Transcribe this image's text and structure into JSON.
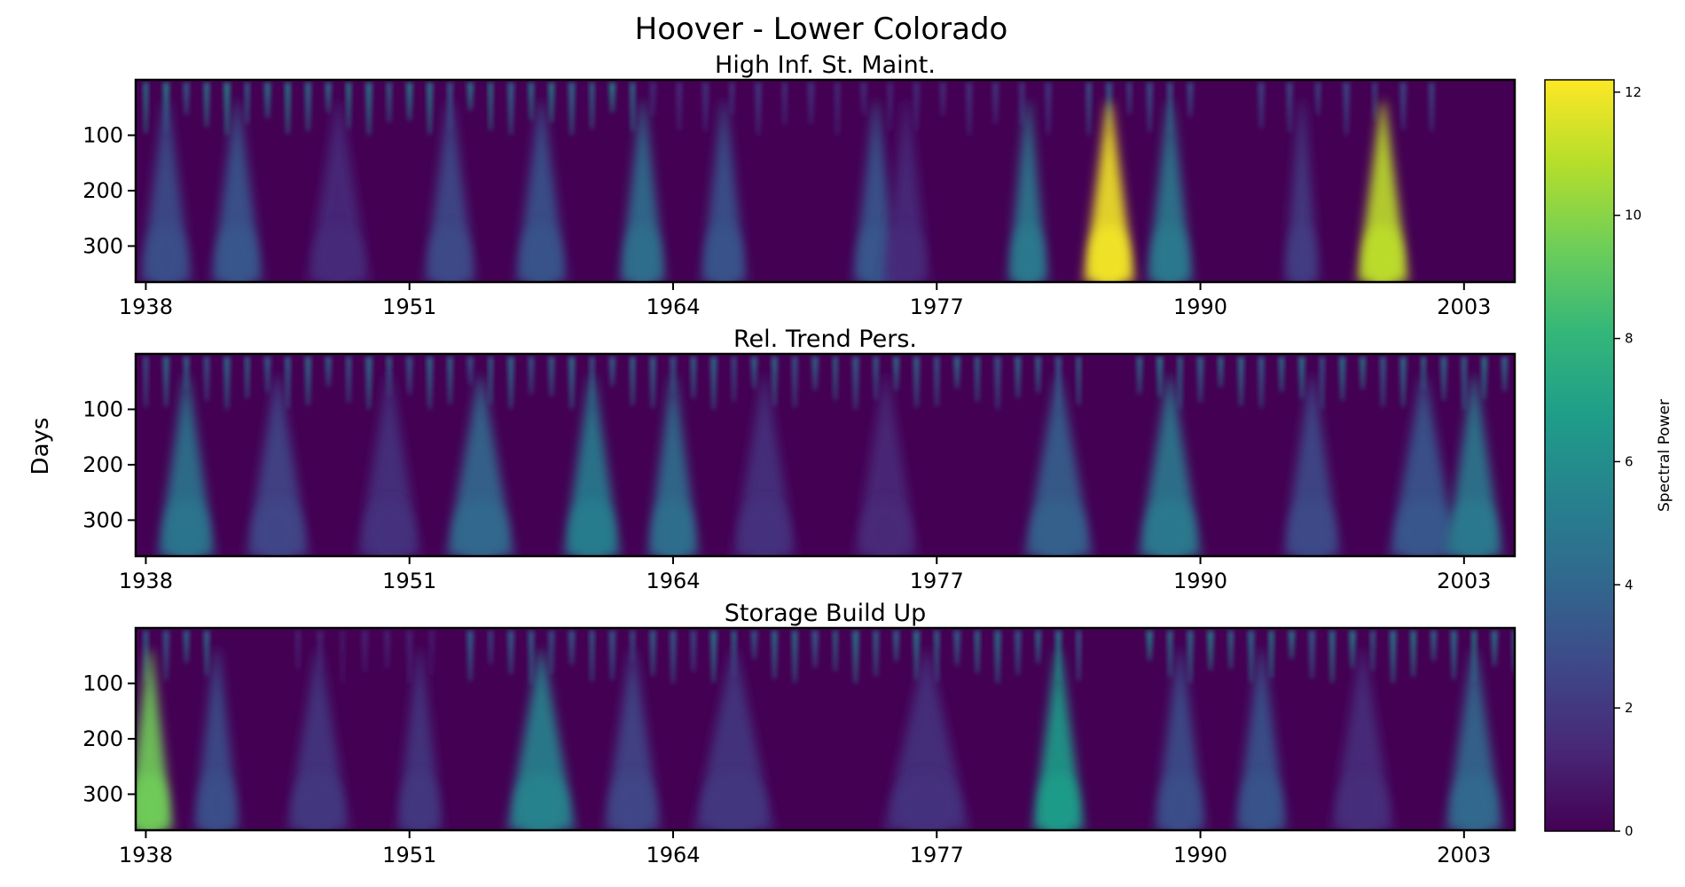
{
  "figure": {
    "title": "Hoover - Lower Colorado",
    "ylabel": "Days",
    "colorbar": {
      "label": "Spectral Power",
      "min": 0,
      "max": 12.2,
      "ticks": [
        0,
        2,
        4,
        6,
        8,
        10,
        12
      ],
      "colormap": "viridis"
    }
  },
  "colors": {
    "viridis": [
      "#440154",
      "#482878",
      "#3e4989",
      "#31688e",
      "#26828e",
      "#1f9e89",
      "#35b779",
      "#6ece58",
      "#b5de2b",
      "#fde725"
    ],
    "background": "#440154",
    "axis": "#000000"
  },
  "chart_data": [
    {
      "type": "heatmap",
      "title": "High Inf. St. Maint.",
      "xlabel": "",
      "ylabel": "Days",
      "xlim": [
        1937.5,
        2005.5
      ],
      "ylim": [
        365,
        0
      ],
      "x_ticks": [
        1938,
        1951,
        1964,
        1977,
        1990,
        2003
      ],
      "y_ticks": [
        100,
        200,
        300
      ],
      "tall_features": [
        {
          "year": 1939,
          "power": 3.0,
          "width": 0.9
        },
        {
          "year": 1942.5,
          "power": 3.4,
          "width": 0.9
        },
        {
          "year": 1947.5,
          "power": 1.5,
          "width": 1.1
        },
        {
          "year": 1953,
          "power": 2.8,
          "width": 0.9
        },
        {
          "year": 1957.5,
          "power": 3.2,
          "width": 0.9
        },
        {
          "year": 1962.5,
          "power": 4.5,
          "width": 0.8
        },
        {
          "year": 1966.5,
          "power": 3.2,
          "width": 0.8
        },
        {
          "year": 1974,
          "power": 3.4,
          "width": 0.8
        },
        {
          "year": 1975.5,
          "power": 1.5,
          "width": 0.8
        },
        {
          "year": 1981.5,
          "power": 5.0,
          "width": 0.7
        },
        {
          "year": 1985.5,
          "power": 12.0,
          "width": 0.9
        },
        {
          "year": 1988.5,
          "power": 5.0,
          "width": 0.8
        },
        {
          "year": 1995,
          "power": 2.2,
          "width": 0.6
        },
        {
          "year": 1999,
          "power": 11.0,
          "width": 0.9
        }
      ],
      "comb": [
        {
          "from": 1938,
          "to": 1962.5,
          "spacing": 1.0,
          "power": 6.0
        },
        {
          "from": 1963,
          "to": 1983,
          "spacing": 1.3,
          "power": 2.2
        },
        {
          "from": 1984.5,
          "to": 1989.5,
          "spacing": 1.0,
          "power": 3.8
        },
        {
          "from": 1993,
          "to": 2001.5,
          "spacing": 1.4,
          "power": 3.0
        }
      ]
    },
    {
      "type": "heatmap",
      "title": "Rel. Trend Pers.",
      "xlabel": "",
      "ylabel": "Days",
      "xlim": [
        1937.5,
        2005.5
      ],
      "ylim": [
        365,
        0
      ],
      "x_ticks": [
        1938,
        1951,
        1964,
        1977,
        1990,
        2003
      ],
      "y_ticks": [
        100,
        200,
        300
      ],
      "tall_features": [
        {
          "year": 1940,
          "power": 4.8,
          "width": 1.0
        },
        {
          "year": 1944.5,
          "power": 2.6,
          "width": 1.1
        },
        {
          "year": 1950,
          "power": 1.8,
          "width": 1.1
        },
        {
          "year": 1954.5,
          "power": 4.2,
          "width": 1.2
        },
        {
          "year": 1960,
          "power": 5.2,
          "width": 1.0
        },
        {
          "year": 1964,
          "power": 4.5,
          "width": 0.9
        },
        {
          "year": 1968.5,
          "power": 1.8,
          "width": 1.1
        },
        {
          "year": 1974.5,
          "power": 1.4,
          "width": 1.1
        },
        {
          "year": 1983,
          "power": 3.8,
          "width": 1.2
        },
        {
          "year": 1988.5,
          "power": 5.0,
          "width": 1.1
        },
        {
          "year": 1995.5,
          "power": 2.8,
          "width": 1.0
        },
        {
          "year": 2001,
          "power": 3.4,
          "width": 1.2
        },
        {
          "year": 2003.5,
          "power": 5.0,
          "width": 1.0
        }
      ],
      "comb": [
        {
          "from": 1938,
          "to": 1984.5,
          "spacing": 1.0,
          "power": 5.0
        },
        {
          "from": 1987,
          "to": 2005.5,
          "spacing": 1.0,
          "power": 5.5
        }
      ]
    },
    {
      "type": "heatmap",
      "title": "Storage Build Up",
      "xlabel": "",
      "ylabel": "Days",
      "xlim": [
        1937.5,
        2005.5
      ],
      "ylim": [
        365,
        0
      ],
      "x_ticks": [
        1938,
        1951,
        1964,
        1977,
        1990,
        2003
      ],
      "y_ticks": [
        100,
        200,
        300
      ],
      "tall_features": [
        {
          "year": 1938.2,
          "power": 9.5,
          "width": 0.8
        },
        {
          "year": 1941.5,
          "power": 3.0,
          "width": 0.8
        },
        {
          "year": 1946.5,
          "power": 2.0,
          "width": 1.1
        },
        {
          "year": 1951.5,
          "power": 2.0,
          "width": 0.8
        },
        {
          "year": 1957.5,
          "power": 5.5,
          "width": 1.2
        },
        {
          "year": 1962,
          "power": 2.6,
          "width": 1.0
        },
        {
          "year": 1967,
          "power": 2.0,
          "width": 1.4
        },
        {
          "year": 1976.5,
          "power": 1.8,
          "width": 1.5
        },
        {
          "year": 1983,
          "power": 6.8,
          "width": 0.9
        },
        {
          "year": 1989,
          "power": 3.0,
          "width": 0.9
        },
        {
          "year": 1993,
          "power": 3.2,
          "width": 0.9
        },
        {
          "year": 1998,
          "power": 1.6,
          "width": 1.1
        },
        {
          "year": 2003.5,
          "power": 4.2,
          "width": 1.0
        }
      ],
      "comb": [
        {
          "from": 1938,
          "to": 1941.5,
          "spacing": 1.0,
          "power": 5.0
        },
        {
          "from": 1945.5,
          "to": 1953,
          "spacing": 1.1,
          "power": 1.4
        },
        {
          "from": 1954,
          "to": 1965.5,
          "spacing": 1.0,
          "power": 4.5
        },
        {
          "from": 1966,
          "to": 1984,
          "spacing": 1.0,
          "power": 5.5
        },
        {
          "from": 1987.5,
          "to": 2005.5,
          "spacing": 1.0,
          "power": 6.0
        }
      ]
    }
  ]
}
